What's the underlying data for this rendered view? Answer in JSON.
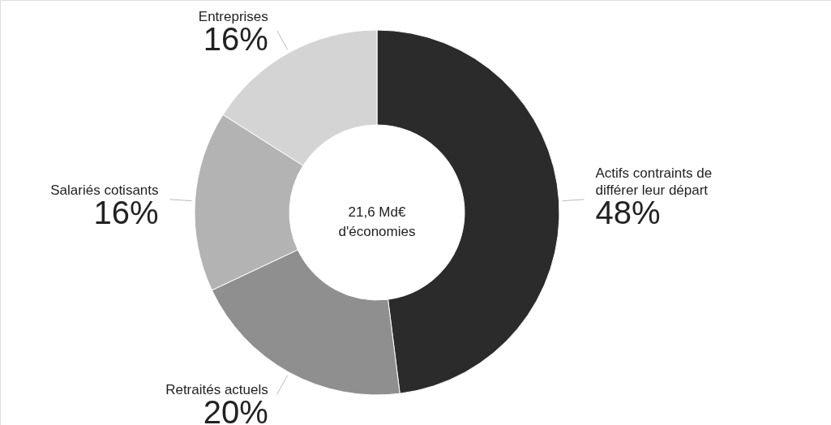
{
  "chart_data": {
    "type": "donut",
    "categories": [
      "Actifs contraints de différer leur départ",
      "Retraités actuels",
      "Salariés cotisants",
      "Entreprises"
    ],
    "values": [
      48,
      20,
      16,
      16
    ],
    "value_labels": [
      "48%",
      "20%",
      "16%",
      "16%"
    ],
    "colors": [
      "#2b2b2b",
      "#8f8f8f",
      "#b3b3b3",
      "#d4d4d4"
    ],
    "annotations": [
      "21,6 Md€ d'économies"
    ]
  }
}
